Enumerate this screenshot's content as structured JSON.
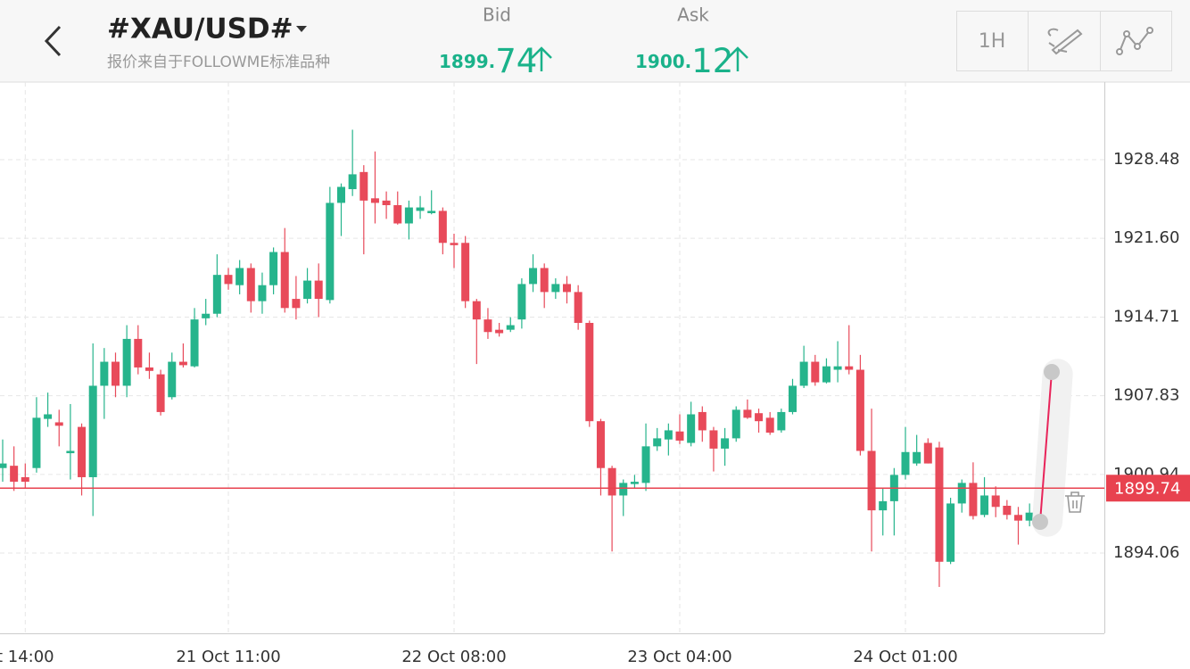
{
  "header": {
    "title": "#XAU/USD#",
    "subtitle": "报价来自于FOLLOWME标准品种",
    "bid": {
      "label": "Bid",
      "price_main": "1899.",
      "price_pips": "74"
    },
    "ask": {
      "label": "Ask",
      "price_main": "1900.",
      "price_pips": "12"
    },
    "timeframe": "1H"
  },
  "chart_data": {
    "type": "candlestick",
    "categories": [
      null,
      null,
      "t 14:00",
      null,
      null,
      null,
      null,
      null,
      null,
      null,
      null,
      null,
      null,
      null,
      null,
      null,
      null,
      null,
      null,
      null,
      "21 Oct 11:00",
      null,
      null,
      null,
      null,
      null,
      null,
      null,
      null,
      null,
      null,
      null,
      null,
      null,
      null,
      null,
      null,
      null,
      null,
      null,
      "22 Oct 08:00",
      null,
      null,
      null,
      null,
      null,
      null,
      null,
      null,
      null,
      null,
      null,
      null,
      null,
      null,
      null,
      null,
      null,
      null,
      null,
      "23 Oct 04:00",
      null,
      null,
      null,
      null,
      null,
      null,
      null,
      null,
      null,
      null,
      null,
      null,
      null,
      null,
      null,
      null,
      null,
      null,
      null,
      "24 Oct 01:00",
      null,
      null,
      null,
      null,
      null,
      null,
      null,
      null,
      null,
      null,
      null,
      null,
      null
    ],
    "open": [
      1901.5,
      1901.7,
      1900.7,
      1901.5,
      1905.8,
      1905.5,
      1902.8,
      1905.1,
      1900.7,
      1908.7,
      1910.8,
      1908.7,
      1912.8,
      1910.3,
      1909.7,
      1907.7,
      1910.8,
      1910.4,
      1914.6,
      1915.0,
      1918.4,
      1917.5,
      1919.0,
      1916.1,
      1917.5,
      1920.4,
      1916.3,
      1916.3,
      1917.9,
      1916.2,
      1924.7,
      1925.9,
      1927.4,
      1925.1,
      1924.9,
      1924.5,
      1922.9,
      1924.0,
      1923.8,
      1924.0,
      1921.2,
      1921.2,
      1916.1,
      1914.5,
      1913.6,
      1913.6,
      1914.5,
      1917.6,
      1919.0,
      1916.9,
      1917.6,
      1916.9,
      1914.2,
      1905.6,
      1901.5,
      1899.1,
      1900.1,
      1900.2,
      1903.4,
      1904.0,
      1904.7,
      1903.7,
      1906.4,
      1904.8,
      1903.2,
      1904.1,
      1906.6,
      1906.3,
      1905.9,
      1904.8,
      1906.4,
      1908.7,
      1910.8,
      1909.0,
      1910.1,
      1910.4,
      1910.1,
      1903.0,
      1897.8,
      1898.6,
      1900.9,
      1901.9,
      1903.7,
      1903.3,
      1893.3,
      1898.4,
      1900.2,
      1897.4,
      1899.1,
      1898.2,
      1897.4,
      1896.9,
      1897.5,
      1900.3
    ],
    "high": [
      1904.0,
      1903.4,
      1901.9,
      1907.7,
      1908.1,
      1906.6,
      1907.1,
      1905.4,
      1912.4,
      1912.0,
      1911.6,
      1914.0,
      1914.0,
      1911.6,
      1910.1,
      1911.6,
      1912.4,
      1915.5,
      1916.3,
      1920.2,
      1919.0,
      1919.7,
      1919.4,
      1918.6,
      1920.8,
      1922.5,
      1918.3,
      1919.0,
      1919.4,
      1926.1,
      1926.4,
      1931.1,
      1928.0,
      1929.2,
      1925.7,
      1925.7,
      1924.9,
      1925.3,
      1925.8,
      1924.3,
      1922.0,
      1921.8,
      1916.3,
      1915.5,
      1914.2,
      1914.7,
      1918.1,
      1920.2,
      1919.4,
      1918.1,
      1918.3,
      1917.5,
      1914.4,
      1905.8,
      1901.7,
      1900.5,
      1900.9,
      1905.4,
      1905.0,
      1905.4,
      1906.2,
      1907.3,
      1906.9,
      1905.1,
      1905.0,
      1906.9,
      1907.5,
      1906.7,
      1906.4,
      1906.7,
      1909.3,
      1912.2,
      1911.4,
      1911.1,
      1912.6,
      1914.0,
      1911.4,
      1906.7,
      1899.7,
      1901.5,
      1905.1,
      1904.4,
      1904.1,
      1903.8,
      1898.9,
      1900.5,
      1902.0,
      1900.7,
      1899.9,
      1898.7,
      1898.1,
      1898.4,
      1901.9,
      1901.9
    ],
    "low": [
      1900.3,
      1899.5,
      1899.7,
      1901.1,
      1905.1,
      1903.4,
      1900.5,
      1899.1,
      1897.3,
      1905.8,
      1907.7,
      1907.7,
      1909.7,
      1909.3,
      1906.1,
      1907.5,
      1910.3,
      1910.3,
      1914.0,
      1914.7,
      1917.1,
      1916.7,
      1915.1,
      1915.0,
      1916.7,
      1915.1,
      1914.5,
      1915.9,
      1914.7,
      1915.9,
      1921.8,
      1925.3,
      1920.2,
      1922.9,
      1923.3,
      1922.8,
      1921.5,
      1923.3,
      1923.7,
      1920.2,
      1919.0,
      1915.5,
      1910.6,
      1912.8,
      1913.0,
      1913.4,
      1913.7,
      1916.9,
      1915.5,
      1916.3,
      1915.9,
      1913.6,
      1905.1,
      1899.1,
      1894.2,
      1897.3,
      1899.7,
      1899.5,
      1903.0,
      1902.6,
      1903.6,
      1903.4,
      1903.8,
      1901.2,
      1901.7,
      1903.8,
      1905.8,
      1904.6,
      1904.4,
      1904.6,
      1906.2,
      1908.5,
      1908.7,
      1908.9,
      1909.0,
      1909.7,
      1902.6,
      1894.2,
      1895.6,
      1895.6,
      1900.5,
      1901.7,
      1901.9,
      1891.1,
      1893.1,
      1897.6,
      1897.0,
      1897.2,
      1897.2,
      1897.0,
      1894.8,
      1896.4,
      1897.3,
      1896.0
    ],
    "close": [
      1901.9,
      1900.3,
      1900.3,
      1905.9,
      1906.2,
      1905.2,
      1903.0,
      1900.7,
      1908.7,
      1910.8,
      1908.7,
      1912.8,
      1910.3,
      1910.0,
      1906.4,
      1910.8,
      1910.5,
      1914.5,
      1915.0,
      1918.4,
      1917.6,
      1919.0,
      1916.1,
      1917.5,
      1920.4,
      1915.5,
      1915.5,
      1917.9,
      1916.3,
      1924.7,
      1926.1,
      1927.2,
      1924.9,
      1924.7,
      1924.5,
      1922.9,
      1924.3,
      1924.3,
      1924.0,
      1921.2,
      1921.0,
      1916.1,
      1914.5,
      1913.4,
      1913.3,
      1914.0,
      1917.6,
      1919.0,
      1916.9,
      1917.6,
      1916.9,
      1914.2,
      1905.6,
      1901.5,
      1899.1,
      1900.2,
      1900.3,
      1903.4,
      1904.1,
      1904.8,
      1903.9,
      1906.2,
      1904.8,
      1903.2,
      1904.1,
      1906.6,
      1905.9,
      1905.6,
      1904.6,
      1906.4,
      1908.7,
      1910.8,
      1909.0,
      1910.4,
      1910.4,
      1910.1,
      1903.0,
      1897.8,
      1898.6,
      1900.9,
      1902.9,
      1902.9,
      1901.9,
      1893.3,
      1898.4,
      1900.2,
      1897.3,
      1899.1,
      1898.1,
      1897.4,
      1896.9,
      1897.6,
      1900.3,
      1899.7
    ],
    "up_color": "#26b48c",
    "down_color": "#e84a5a",
    "ylim": [
      1887.04,
      1935.27
    ],
    "yticks": [
      1928.48,
      {
        "value": 1921.6,
        "label": "1921.60"
      },
      1914.71,
      1907.83,
      1900.94,
      1894.06
    ],
    "last_price": 1899.74,
    "last_price_color": "#e8424f",
    "grid": true
  }
}
